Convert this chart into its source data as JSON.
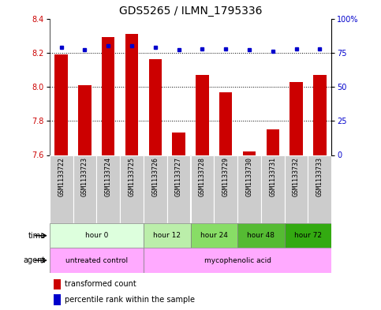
{
  "title": "GDS5265 / ILMN_1795336",
  "samples": [
    "GSM1133722",
    "GSM1133723",
    "GSM1133724",
    "GSM1133725",
    "GSM1133726",
    "GSM1133727",
    "GSM1133728",
    "GSM1133729",
    "GSM1133730",
    "GSM1133731",
    "GSM1133732",
    "GSM1133733"
  ],
  "transformed_count": [
    8.19,
    8.01,
    8.29,
    8.31,
    8.16,
    7.73,
    8.07,
    7.97,
    7.62,
    7.75,
    8.03,
    8.07
  ],
  "percentile_rank": [
    79,
    77,
    80,
    80,
    79,
    77,
    78,
    78,
    77,
    76,
    78,
    78
  ],
  "bar_color": "#cc0000",
  "dot_color": "#0000cc",
  "ylim_left": [
    7.6,
    8.4
  ],
  "ylim_right": [
    0,
    100
  ],
  "yticks_left": [
    7.6,
    7.8,
    8.0,
    8.2,
    8.4
  ],
  "yticks_right": [
    0,
    25,
    50,
    75,
    100
  ],
  "ytick_labels_right": [
    "0",
    "25",
    "50",
    "75",
    "100%"
  ],
  "bar_bottom": 7.6,
  "time_groups": [
    {
      "label": "hour 0",
      "start": 0,
      "end": 4,
      "color": "#ddffdd"
    },
    {
      "label": "hour 12",
      "start": 4,
      "end": 6,
      "color": "#bbeeaa"
    },
    {
      "label": "hour 24",
      "start": 6,
      "end": 8,
      "color": "#88dd66"
    },
    {
      "label": "hour 48",
      "start": 8,
      "end": 10,
      "color": "#55bb33"
    },
    {
      "label": "hour 72",
      "start": 10,
      "end": 12,
      "color": "#33aa11"
    }
  ],
  "agent_groups": [
    {
      "label": "untreated control",
      "start": 0,
      "end": 4,
      "color": "#ffaaff"
    },
    {
      "label": "mycophenolic acid",
      "start": 4,
      "end": 12,
      "color": "#ffaaff"
    }
  ],
  "sample_col_color": "#cccccc",
  "legend_bar_label": "transformed count",
  "legend_dot_label": "percentile rank within the sample",
  "title_fontsize": 10,
  "tick_fontsize": 7,
  "sample_fontsize": 6
}
